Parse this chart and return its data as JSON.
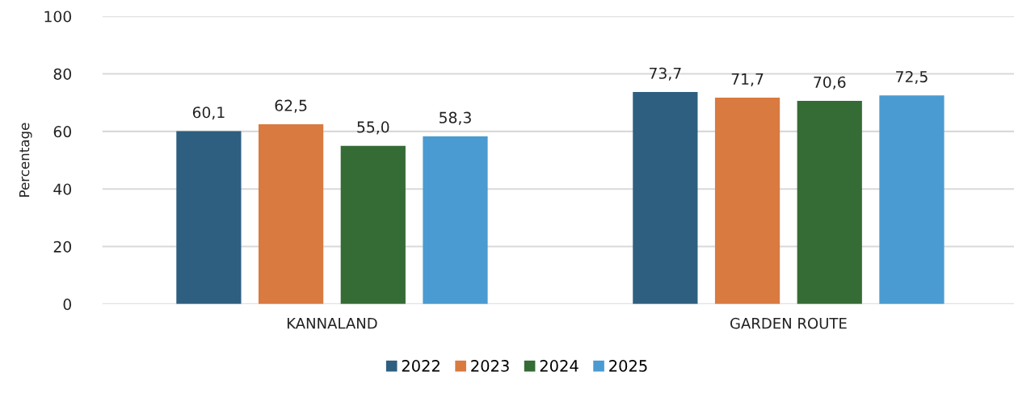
{
  "chart_data": {
    "type": "bar",
    "ylabel": "Percentage",
    "categories": [
      "KANNALAND",
      "GARDEN ROUTE"
    ],
    "series": [
      {
        "name": "2022",
        "color": "#2e5f80",
        "values": [
          60.1,
          73.7
        ],
        "value_labels": [
          "60,1",
          "73,7"
        ]
      },
      {
        "name": "2023",
        "color": "#d97a40",
        "values": [
          62.5,
          71.7
        ],
        "value_labels": [
          "62,5",
          "71,7"
        ]
      },
      {
        "name": "2024",
        "color": "#356b35",
        "values": [
          55.0,
          70.6
        ],
        "value_labels": [
          "55,0",
          "70,6"
        ]
      },
      {
        "name": "2025",
        "color": "#4a9bd1",
        "values": [
          58.3,
          72.5
        ],
        "value_labels": [
          "58,3",
          "72,5"
        ]
      }
    ],
    "ylim": [
      0,
      100
    ],
    "yticks": [
      0,
      20,
      40,
      60,
      80,
      100
    ],
    "grid": "y",
    "legend": "bottom"
  }
}
